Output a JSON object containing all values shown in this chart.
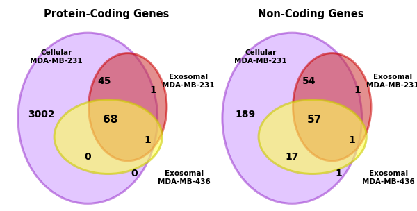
{
  "left_title": "Protein-Coding Genes",
  "right_title": "Non-Coding Genes",
  "left": {
    "cellular_label": "Cellular\nMDA-MB-231",
    "exosomal231_label": "Exosomal\nMDA-MB-231",
    "exosomal436_label": "Exosomal\nMDA-MB-436",
    "n_cellular_only": "3002",
    "n_exo231_only": "1",
    "n_exo436_only": "0",
    "n_cell_exo231": "45",
    "n_all_three": "68",
    "n_cell_exo436": "0",
    "n_exo231_exo436": "1"
  },
  "right": {
    "cellular_label": "Cellular\nMDA-MB-231",
    "exosomal231_label": "Exosomal\nMDA-MB-231",
    "exosomal436_label": "Exosomal\nMDA-MB-436",
    "n_cellular_only": "189",
    "n_exo231_only": "1",
    "n_exo436_only": "1",
    "n_cell_exo231": "54",
    "n_all_three": "57",
    "n_cell_exo436": "17",
    "n_exo231_exo436": "1"
  },
  "colors": {
    "cellular_face": "#CC99FF",
    "cellular_edge": "#9933CC",
    "exo231_face": "#CC3333",
    "exo231_edge": "#CC0000",
    "exo436_face": "#FFFF55",
    "exo436_edge": "#CCCC00"
  },
  "alphas": {
    "cellular": 0.55,
    "exo231": 0.55,
    "exo436": 0.6
  }
}
